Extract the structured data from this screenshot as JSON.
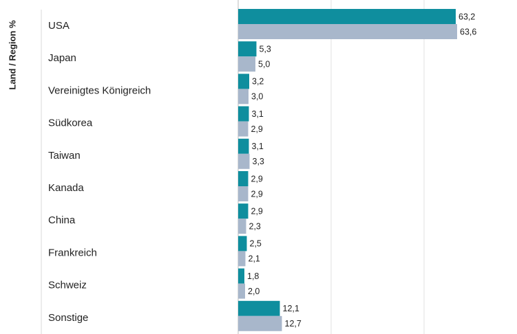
{
  "chart_data": {
    "type": "hbar",
    "y_axis_label": "Land / Region %",
    "categories": [
      "USA",
      "Japan",
      "Vereinigtes Königreich",
      "Südkorea",
      "Taiwan",
      "Kanada",
      "China",
      "Frankreich",
      "Schweiz",
      "Sonstige"
    ],
    "series": [
      {
        "color": "#0f8e9e",
        "values": [
          63.2,
          5.3,
          3.2,
          3.1,
          3.1,
          2.9,
          2.9,
          2.5,
          1.8,
          12.1
        ],
        "value_labels": [
          "63,2",
          "5,3",
          "3,2",
          "3,1",
          "3,1",
          "2,9",
          "2,9",
          "2,5",
          "1,8",
          "12,1"
        ]
      },
      {
        "color": "#a8b7cb",
        "values": [
          63.6,
          5.0,
          3.0,
          2.9,
          3.3,
          2.9,
          2.3,
          2.1,
          2.0,
          12.7
        ],
        "value_labels": [
          "63,6",
          "5,0",
          "3,0",
          "2,9",
          "3,3",
          "2,9",
          "2,3",
          "2,1",
          "2,0",
          "12,7"
        ]
      }
    ],
    "xlim": [
      0,
      80
    ],
    "xticks": [
      0,
      27,
      54
    ],
    "grid": true
  }
}
